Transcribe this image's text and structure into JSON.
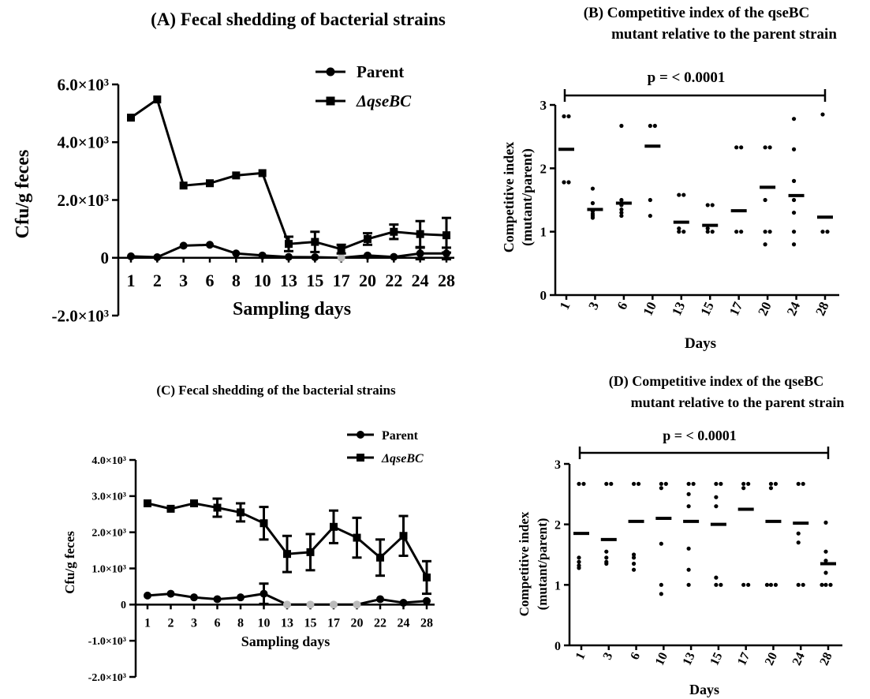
{
  "chart_data": [
    {
      "panel": "A",
      "type": "line",
      "title": "(A) Fecal shedding of bacterial strains",
      "xlabel": "Sampling days",
      "ylabel": "Cfu/g feces",
      "categories": [
        "1",
        "2",
        "3",
        "6",
        "8",
        "10",
        "13",
        "15",
        "17",
        "20",
        "22",
        "24",
        "28"
      ],
      "ylim": [
        -2000,
        6000
      ],
      "yticks": [
        -2000,
        0,
        2000,
        4000,
        6000
      ],
      "ytick_labels": [
        "-2.0×10³",
        "0",
        "2.0×10³",
        "4.0×10³",
        "6.0×10³"
      ],
      "grid": false,
      "legend": "top-right",
      "series": [
        {
          "name": "Parent",
          "marker": "circle",
          "values": [
            50,
            20,
            420,
            450,
            150,
            80,
            30,
            20,
            0,
            80,
            30,
            150,
            150
          ],
          "errors": [
            0,
            0,
            0,
            0,
            0,
            0,
            0,
            0,
            0,
            0,
            0,
            200,
            200
          ]
        },
        {
          "name": "ΔqseBC",
          "marker": "square",
          "values": [
            4850,
            5480,
            2500,
            2580,
            2850,
            2930,
            480,
            550,
            300,
            650,
            900,
            820,
            780
          ],
          "errors": [
            0,
            0,
            0,
            0,
            0,
            0,
            250,
            350,
            150,
            200,
            250,
            450,
            600
          ]
        }
      ]
    },
    {
      "panel": "B",
      "type": "scatter",
      "title_lines": [
        "(B) Competitive index of the qseBC",
        "mutant relative to the parent strain"
      ],
      "xlabel": "Days",
      "ylabel_lines": [
        "Competitive index",
        "(mutant/parent)"
      ],
      "annotation": "p = < 0.0001",
      "categories": [
        "1",
        "3",
        "6",
        "10",
        "13",
        "15",
        "17",
        "20",
        "24",
        "28"
      ],
      "ylim": [
        0,
        3
      ],
      "yticks": [
        "0",
        "1",
        "2",
        "3"
      ],
      "grid": false,
      "points": [
        [
          2.82,
          2.82,
          1.78,
          1.78
        ],
        [
          1.68,
          1.45,
          1.32,
          1.28,
          1.25,
          1.22
        ],
        [
          2.67,
          1.5,
          1.42,
          1.35,
          1.3,
          1.25
        ],
        [
          2.67,
          2.67,
          1.5,
          1.25
        ],
        [
          1.58,
          1.58,
          1.05,
          1.0,
          1.0
        ],
        [
          1.42,
          1.42,
          1.05,
          1.0,
          1.0
        ],
        [
          2.33,
          2.33,
          1.0,
          1.0
        ],
        [
          2.33,
          2.33,
          1.5,
          1.0,
          1.0,
          0.8
        ],
        [
          2.78,
          2.3,
          1.8,
          1.5,
          1.3,
          1.0,
          0.8
        ],
        [
          2.85,
          1.0,
          1.0
        ]
      ],
      "means": [
        2.3,
        1.35,
        1.45,
        2.35,
        1.15,
        1.1,
        1.33,
        1.7,
        1.57,
        1.23
      ]
    },
    {
      "panel": "C",
      "type": "line",
      "title": "(C) Fecal shedding of the bacterial strains",
      "xlabel": "Sampling days",
      "ylabel": "Cfu/g feces",
      "categories": [
        "1",
        "2",
        "3",
        "6",
        "8",
        "10",
        "13",
        "15",
        "17",
        "20",
        "22",
        "24",
        "28"
      ],
      "ylim": [
        -2000,
        4000
      ],
      "yticks": [
        -2000,
        -1000,
        0,
        1000,
        2000,
        3000,
        4000
      ],
      "ytick_labels": [
        "-2.0×10³",
        "-1.0×10³",
        "0",
        "1.0×10³",
        "2.0×10³",
        "3.0×10³",
        "4.0×10³"
      ],
      "grid": false,
      "legend": "top-right",
      "series": [
        {
          "name": "Parent",
          "marker": "circle",
          "values": [
            250,
            300,
            200,
            150,
            200,
            300,
            0,
            0,
            0,
            0,
            150,
            50,
            100
          ],
          "errors": [
            0,
            0,
            0,
            0,
            0,
            280,
            0,
            0,
            0,
            0,
            0,
            0,
            0
          ]
        },
        {
          "name": "ΔqseBC",
          "marker": "square",
          "values": [
            2800,
            2650,
            2800,
            2680,
            2550,
            2250,
            1400,
            1450,
            2150,
            1850,
            1300,
            1900,
            750
          ],
          "errors": [
            0,
            0,
            0,
            250,
            250,
            450,
            500,
            500,
            450,
            550,
            500,
            550,
            450
          ]
        }
      ]
    },
    {
      "panel": "D",
      "type": "scatter",
      "title_lines": [
        "(D) Competitive index of the qseBC",
        "mutant relative to the parent strain"
      ],
      "xlabel": "Days",
      "ylabel_lines": [
        "Competitive index",
        "(mutant/parent)"
      ],
      "annotation": "p = < 0.0001",
      "categories": [
        "1",
        "3",
        "6",
        "10",
        "13",
        "15",
        "17",
        "20",
        "24",
        "28"
      ],
      "ylim": [
        0,
        3
      ],
      "yticks": [
        "0",
        "1",
        "2",
        "3"
      ],
      "grid": false,
      "points": [
        [
          2.67,
          2.67,
          1.45,
          1.38,
          1.32,
          1.28
        ],
        [
          2.67,
          2.67,
          1.55,
          1.45,
          1.38,
          1.35
        ],
        [
          2.67,
          2.67,
          1.5,
          1.45,
          1.35,
          1.25
        ],
        [
          2.67,
          2.67,
          2.6,
          1.68,
          1.0,
          0.85
        ],
        [
          2.67,
          2.67,
          2.5,
          2.3,
          1.6,
          1.25,
          1.0
        ],
        [
          2.67,
          2.67,
          2.45,
          2.3,
          1.12,
          1.0,
          1.0
        ],
        [
          2.67,
          2.67,
          2.6,
          1.0,
          1.0
        ],
        [
          2.67,
          2.67,
          2.6,
          1.0,
          1.0,
          1.0
        ],
        [
          2.67,
          2.67,
          1.85,
          1.7,
          1.0,
          1.0
        ],
        [
          2.03,
          1.55,
          1.4,
          1.2,
          1.0,
          1.0,
          1.0
        ]
      ],
      "means": [
        1.85,
        1.75,
        2.05,
        2.1,
        2.05,
        2.0,
        2.25,
        2.05,
        2.02,
        1.35
      ]
    }
  ]
}
